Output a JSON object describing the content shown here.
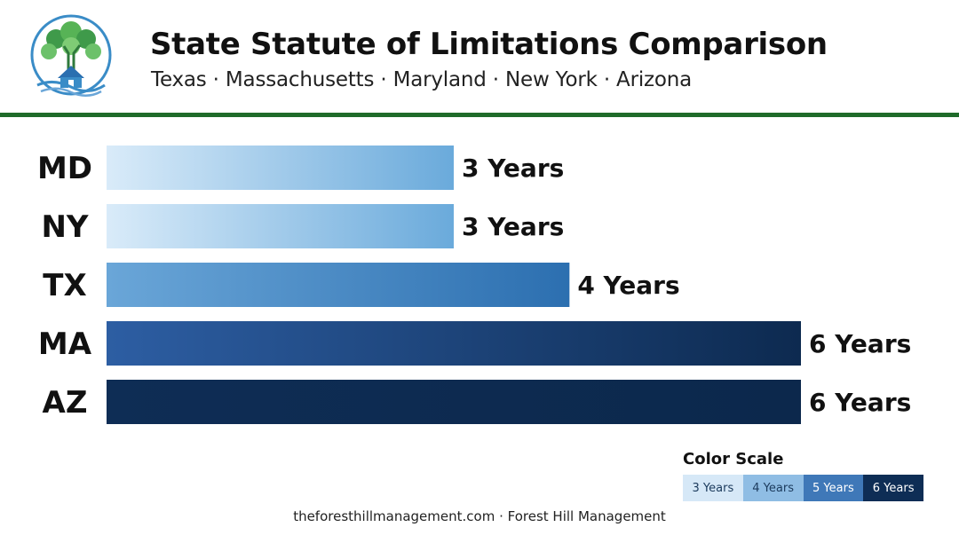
{
  "header": {
    "title": "State Statute of Limitations Comparison",
    "subtitle": "Texas · Massachusetts · Maryland · New York · Arizona"
  },
  "colors": {
    "divider": "#1f6b2a",
    "scale": [
      "#d6e8f7",
      "#6aa6d8",
      "#2d5fa3",
      "#0e2d55"
    ]
  },
  "chart_data": {
    "type": "bar",
    "orientation": "horizontal",
    "categories": [
      "MD",
      "NY",
      "TX",
      "MA",
      "AZ"
    ],
    "values": [
      3,
      3,
      4,
      6,
      6
    ],
    "data_labels": [
      "3 Years",
      "3 Years",
      "4 Years",
      "6 Years",
      "6 Years"
    ],
    "xlim": [
      0,
      6
    ],
    "unit": "Years",
    "grid": false,
    "title": "",
    "xlabel": "",
    "ylabel": ""
  },
  "legend": {
    "title": "Color Scale",
    "items": [
      "3 Years",
      "4 Years",
      "5 Years",
      "6 Years"
    ]
  },
  "footer": {
    "text": "theforesthillmanagement.com · Forest Hill Management"
  }
}
